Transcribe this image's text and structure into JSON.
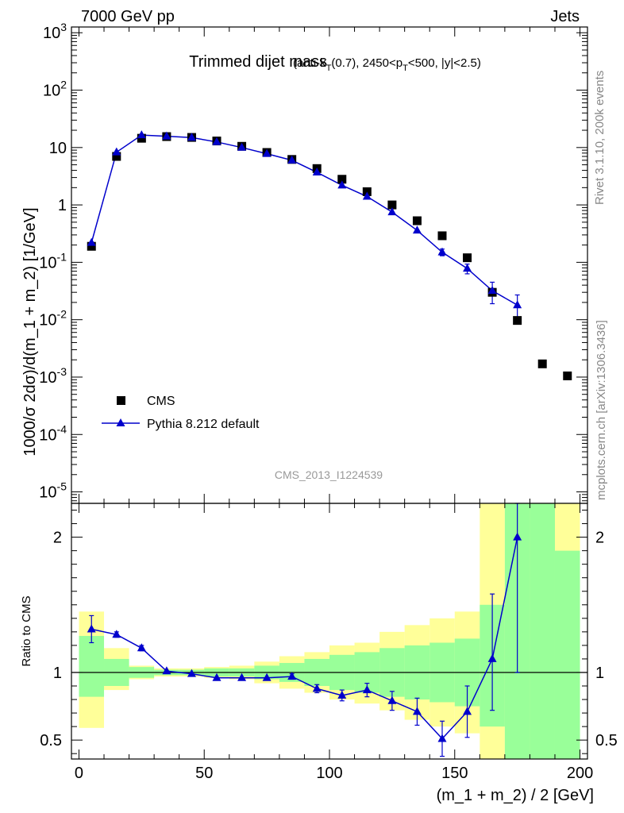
{
  "chart_data": {
    "type": "scatter",
    "header_left": "7000 GeV pp",
    "header_right": "Jets",
    "title_main": "Trimmed dijet mass",
    "title_sub": {
      "prefix": "(anti-k",
      "sub1": "T",
      "mid1": "(0.7), 2450<p",
      "sub2": "T",
      "suffix": "<500, |y|<2.5)"
    },
    "watermark": "CMS_2013_I1224539",
    "side_text_top": "Rivet 3.1.10,  200k events",
    "side_text_bottom": "mcplots.cern.ch [arXiv:1306.3436]",
    "ylabel": "1000/σ 2dσ)/d(m_1 + m_2) [1/GeV]",
    "ratio_ylabel": "Ratio to CMS",
    "xlabel": "(m_1 + m_2) / 2 [GeV]",
    "xlim": [
      -3,
      203
    ],
    "ylim_log": [
      -5.2,
      3.1
    ],
    "ratio_ylim": [
      0.36,
      2.25
    ],
    "x_ticks": [
      0,
      50,
      100,
      150,
      200
    ],
    "y_ticks": [
      {
        "exp": "3",
        "value": 1000,
        "mant": "10"
      },
      {
        "exp": "2",
        "value": 100,
        "mant": "10"
      },
      {
        "exp": "",
        "value": 10,
        "mant": "10"
      },
      {
        "exp": "",
        "value": 1,
        "mant": "1"
      },
      {
        "exp": "-1",
        "value": 0.1,
        "mant": "10"
      },
      {
        "exp": "-2",
        "value": 0.01,
        "mant": "10"
      },
      {
        "exp": "-3",
        "value": 0.001,
        "mant": "10"
      },
      {
        "exp": "-4",
        "value": 0.0001,
        "mant": "10"
      },
      {
        "exp": "-5",
        "value": 1e-05,
        "mant": "10"
      }
    ],
    "ratio_ticks": [
      0.5,
      1,
      2
    ],
    "legend": [
      {
        "name": "CMS",
        "marker": "square",
        "color": "#000000"
      },
      {
        "name": "Pythia 8.212 default",
        "marker": "triangle",
        "color": "#0000cc"
      }
    ],
    "series": [
      {
        "name": "CMS",
        "x": [
          5,
          15,
          25,
          35,
          45,
          55,
          65,
          75,
          85,
          95,
          105,
          115,
          125,
          135,
          145,
          155,
          165,
          175,
          185,
          195
        ],
        "y": [
          0.19,
          7.0,
          14.5,
          15.5,
          15.0,
          13.0,
          10.5,
          8.2,
          6.2,
          4.3,
          2.8,
          1.7,
          1.0,
          0.53,
          0.29,
          0.12,
          0.03,
          0.0097,
          0.0017,
          0.00105
        ]
      },
      {
        "name": "Pythia 8.212 default",
        "x": [
          5,
          15,
          25,
          35,
          45,
          55,
          65,
          75,
          85,
          95,
          105,
          115,
          125,
          135,
          145,
          155,
          165,
          175
        ],
        "y": [
          0.22,
          8.3,
          16.5,
          15.7,
          14.9,
          12.5,
          10.0,
          7.8,
          6.0,
          3.7,
          2.2,
          1.4,
          0.75,
          0.36,
          0.15,
          0.078,
          0.032,
          0.018
        ],
        "yerr": [
          0.02,
          0.2,
          0.3,
          0.3,
          0.3,
          0.25,
          0.2,
          0.15,
          0.12,
          0.1,
          0.08,
          0.06,
          0.05,
          0.03,
          0.02,
          0.015,
          0.013,
          0.009
        ]
      }
    ],
    "ratio": {
      "x": [
        5,
        15,
        25,
        35,
        45,
        55,
        65,
        75,
        85,
        95,
        105,
        115,
        125,
        135,
        145,
        155,
        165,
        175
      ],
      "y": [
        1.32,
        1.28,
        1.18,
        1.01,
        0.99,
        0.96,
        0.96,
        0.96,
        0.97,
        0.88,
        0.83,
        0.87,
        0.79,
        0.71,
        0.51,
        0.71,
        1.1,
        2.0
      ],
      "err_lo": [
        0.1,
        0.02,
        0.02,
        0.01,
        0.01,
        0.01,
        0.01,
        0.01,
        0.02,
        0.03,
        0.04,
        0.05,
        0.07,
        0.1,
        0.13,
        0.19,
        0.38,
        1.0
      ],
      "err_hi": [
        0.1,
        0.02,
        0.02,
        0.01,
        0.01,
        0.01,
        0.01,
        0.01,
        0.02,
        0.03,
        0.04,
        0.05,
        0.07,
        0.1,
        0.13,
        0.19,
        0.48,
        1.0
      ]
    },
    "bands": {
      "edges": [
        0,
        10,
        20,
        30,
        40,
        50,
        60,
        70,
        80,
        90,
        100,
        110,
        120,
        130,
        140,
        150,
        160,
        170,
        180,
        190,
        200
      ],
      "green_lo": [
        0.82,
        0.9,
        0.96,
        0.98,
        0.98,
        0.97,
        0.97,
        0.95,
        0.93,
        0.9,
        0.87,
        0.85,
        0.82,
        0.8,
        0.78,
        0.75,
        0.6,
        0.3,
        0.3,
        0.3
      ],
      "green_hi": [
        1.27,
        1.1,
        1.04,
        1.02,
        1.02,
        1.03,
        1.03,
        1.05,
        1.07,
        1.1,
        1.13,
        1.15,
        1.18,
        1.2,
        1.22,
        1.25,
        1.5,
        2.4,
        2.4,
        1.9
      ],
      "yellow_lo": [
        0.59,
        0.87,
        0.95,
        0.97,
        0.97,
        0.96,
        0.95,
        0.92,
        0.88,
        0.85,
        0.8,
        0.77,
        0.72,
        0.65,
        0.6,
        0.55,
        0.3,
        0.3,
        0.3,
        0.3
      ],
      "yellow_hi": [
        1.45,
        1.18,
        1.05,
        1.03,
        1.03,
        1.04,
        1.05,
        1.08,
        1.12,
        1.15,
        1.2,
        1.22,
        1.3,
        1.35,
        1.4,
        1.45,
        2.4,
        2.4,
        2.4,
        2.4
      ]
    },
    "colors": {
      "data": "#000000",
      "mc": "#0000cc",
      "band_inner": "#99ff99",
      "band_outer": "#ffff99",
      "watermark": "#999999",
      "side_text": "#888888"
    }
  }
}
